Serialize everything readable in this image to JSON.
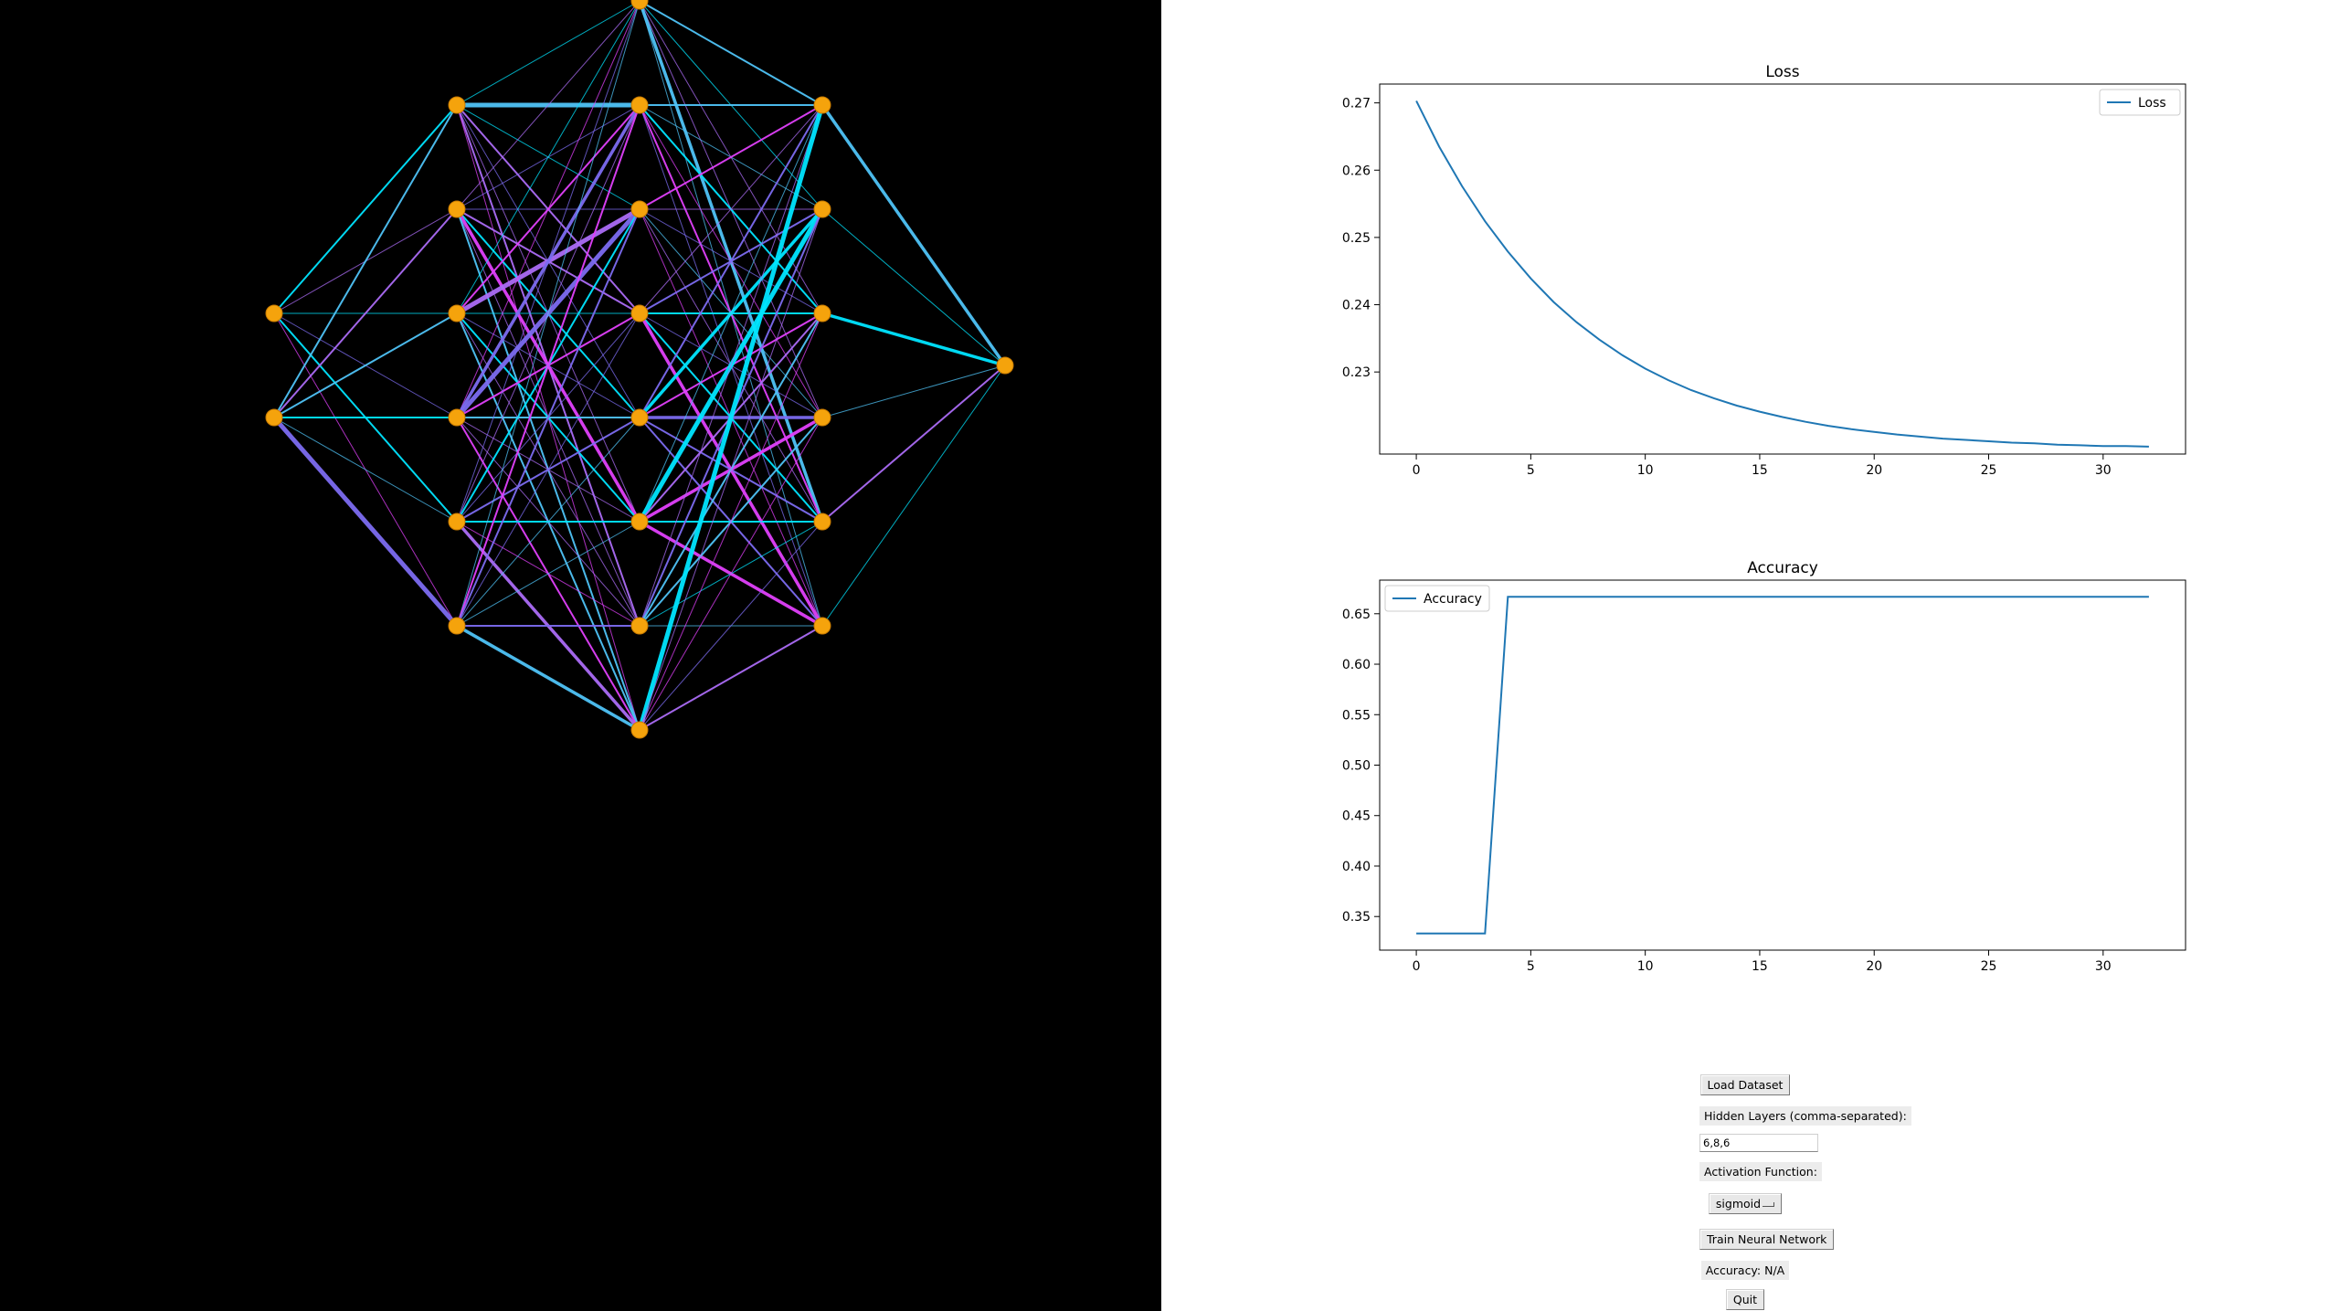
{
  "network": {
    "node_color": "#f5a30c",
    "layer_sizes": [
      2,
      6,
      8,
      6,
      1
    ],
    "colors": [
      "#4fc3f7",
      "#ab6cf5",
      "#00e5ff",
      "#e040fb",
      "#7c6cf0"
    ]
  },
  "chart_data": [
    {
      "type": "line",
      "title": "Loss",
      "xlabel": "",
      "ylabel": "",
      "legend": "top-right",
      "line_color": "#1f77b4",
      "series": [
        {
          "name": "Loss",
          "x": [
            0,
            1,
            2,
            3,
            4,
            5,
            6,
            7,
            8,
            9,
            10,
            11,
            12,
            13,
            14,
            15,
            16,
            17,
            18,
            19,
            20,
            21,
            22,
            23,
            24,
            25,
            26,
            27,
            28,
            29,
            30,
            31,
            32
          ],
          "values": [
            0.2703,
            0.2635,
            0.2576,
            0.2524,
            0.2479,
            0.2439,
            0.2404,
            0.2374,
            0.2348,
            0.2325,
            0.2305,
            0.2288,
            0.2273,
            0.2261,
            0.225,
            0.2241,
            0.2233,
            0.2226,
            0.222,
            0.2215,
            0.2211,
            0.2207,
            0.2204,
            0.2201,
            0.2199,
            0.2197,
            0.2195,
            0.2194,
            0.2192,
            0.2191,
            0.219,
            0.219,
            0.2189
          ]
        }
      ],
      "xlim": [
        -1.6,
        33.6
      ],
      "ylim": [
        0.2178,
        0.2728
      ],
      "xticks": [
        0,
        5,
        10,
        15,
        20,
        25,
        30
      ],
      "yticks": [
        0.23,
        0.24,
        0.25,
        0.26,
        0.27
      ],
      "ytick_labels": [
        "0.23",
        "0.24",
        "0.25",
        "0.26",
        "0.27"
      ]
    },
    {
      "type": "line",
      "title": "Accuracy",
      "xlabel": "",
      "ylabel": "",
      "legend": "top-left",
      "line_color": "#1f77b4",
      "series": [
        {
          "name": "Accuracy",
          "x": [
            0,
            1,
            2,
            3,
            4,
            5,
            6,
            7,
            8,
            9,
            10,
            11,
            12,
            13,
            14,
            15,
            16,
            17,
            18,
            19,
            20,
            21,
            22,
            23,
            24,
            25,
            26,
            27,
            28,
            29,
            30,
            31,
            32
          ],
          "values": [
            0.3333,
            0.3333,
            0.3333,
            0.3333,
            0.6667,
            0.6667,
            0.6667,
            0.6667,
            0.6667,
            0.6667,
            0.6667,
            0.6667,
            0.6667,
            0.6667,
            0.6667,
            0.6667,
            0.6667,
            0.6667,
            0.6667,
            0.6667,
            0.6667,
            0.6667,
            0.6667,
            0.6667,
            0.6667,
            0.6667,
            0.6667,
            0.6667,
            0.6667,
            0.6667,
            0.6667,
            0.6667,
            0.6667
          ]
        }
      ],
      "xlim": [
        -1.6,
        33.6
      ],
      "ylim": [
        0.3167,
        0.6833
      ],
      "xticks": [
        0,
        5,
        10,
        15,
        20,
        25,
        30
      ],
      "yticks": [
        0.35,
        0.4,
        0.45,
        0.5,
        0.55,
        0.6,
        0.65
      ],
      "ytick_labels": [
        "0.35",
        "0.40",
        "0.45",
        "0.50",
        "0.55",
        "0.60",
        "0.65"
      ]
    }
  ],
  "controls": {
    "load_dataset": "Load Dataset",
    "hidden_layers_label": "Hidden Layers (comma-separated):",
    "hidden_layers_value": "6,8,6",
    "activation_label": "Activation Function:",
    "activation_value": "sigmoid",
    "train_button": "Train Neural Network",
    "accuracy_label": "Accuracy: N/A",
    "quit_button": "Quit"
  }
}
